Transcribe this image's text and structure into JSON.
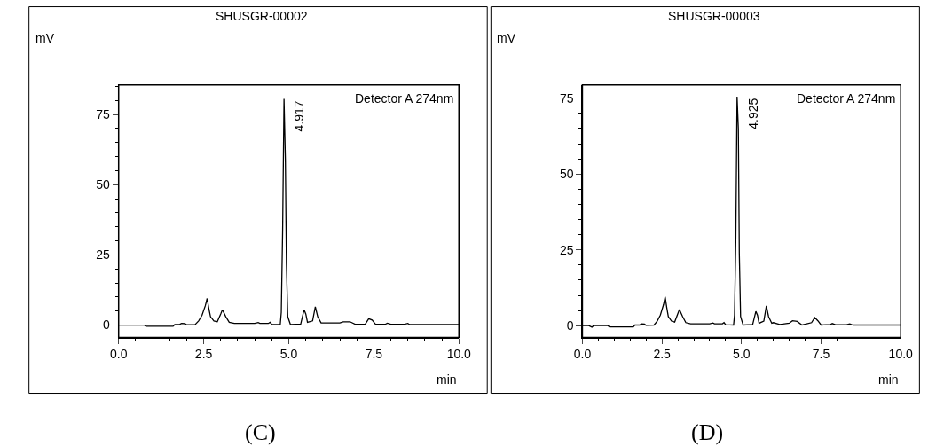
{
  "chart_data": [
    {
      "type": "line",
      "title": "SHUSGR-00002",
      "xlabel": "min",
      "ylabel": "mV",
      "x": [
        0,
        0.75,
        0.8,
        1.6,
        1.65,
        1.8,
        1.85,
        1.95,
        2.0,
        2.25,
        2.35,
        2.45,
        2.55,
        2.6,
        2.65,
        2.7,
        2.8,
        2.9,
        3.0,
        3.05,
        3.15,
        3.25,
        3.4,
        4.0,
        4.1,
        4.15,
        4.4,
        4.45,
        4.5,
        4.75,
        4.78,
        4.82,
        4.86,
        4.9,
        4.93,
        4.97,
        5.05,
        5.35,
        5.45,
        5.5,
        5.55,
        5.7,
        5.78,
        5.85,
        5.95,
        6.5,
        6.6,
        6.8,
        6.95,
        7.25,
        7.35,
        7.45,
        7.55,
        7.85,
        7.9,
        8.0,
        8.4,
        8.5,
        8.55,
        10
      ],
      "series": [
        {
          "color": "#000000",
          "values": [
            0,
            0,
            -0.4,
            -0.4,
            0.2,
            0.3,
            0.6,
            0.5,
            0.1,
            0.2,
            1.5,
            3.5,
            7,
            9.5,
            6,
            3,
            1.5,
            1.2,
            4,
            5.5,
            3,
            1,
            0.6,
            0.6,
            0.9,
            0.6,
            0.6,
            1,
            0.3,
            0.2,
            4.5,
            34,
            80.5,
            59,
            22,
            3,
            0.2,
            0.4,
            5.5,
            4,
            1,
            1.5,
            6.5,
            3,
            0.8,
            0.8,
            1.2,
            1.2,
            0.3,
            0.4,
            2.3,
            1.8,
            0.3,
            0.4,
            0.7,
            0.3,
            0.3,
            0.6,
            0.2,
            0.2
          ]
        }
      ],
      "xlim": [
        0,
        10
      ],
      "ylim": [
        -4.4,
        85.5
      ],
      "xticks": [
        {
          "value": 0,
          "label": "0.0"
        },
        {
          "value": 2.5,
          "label": "2.5"
        },
        {
          "value": 5,
          "label": "5.0"
        },
        {
          "value": 7.5,
          "label": "7.5"
        },
        {
          "value": 10,
          "label": "10.0"
        }
      ],
      "yticks": [
        0,
        25,
        50,
        75
      ],
      "annotations": [
        "Detector A 274nm",
        {
          "text": "4.917",
          "x": 4.917,
          "y": 80.5
        },
        "(C)"
      ]
    },
    {
      "type": "line",
      "title": "SHUSGR-00003",
      "xlabel": "min",
      "ylabel": "mV",
      "x": [
        0,
        0.2,
        0.3,
        0.35,
        0.8,
        0.85,
        1.6,
        1.65,
        1.8,
        1.85,
        1.95,
        2.0,
        2.25,
        2.35,
        2.45,
        2.55,
        2.6,
        2.65,
        2.7,
        2.8,
        2.9,
        3.0,
        3.05,
        3.15,
        3.25,
        3.4,
        4.0,
        4.1,
        4.15,
        4.4,
        4.45,
        4.5,
        4.75,
        4.78,
        4.82,
        4.86,
        4.9,
        4.93,
        4.97,
        5.05,
        5.35,
        5.45,
        5.5,
        5.55,
        5.7,
        5.78,
        5.85,
        5.95,
        6.0,
        6.2,
        6.5,
        6.6,
        6.75,
        6.9,
        7.2,
        7.3,
        7.4,
        7.5,
        7.8,
        7.85,
        7.95,
        8.3,
        8.4,
        8.5,
        10
      ],
      "series": [
        {
          "color": "#000000",
          "values": [
            0,
            0,
            -0.5,
            0,
            0,
            -0.4,
            -0.4,
            0.2,
            0.2,
            0.6,
            0.5,
            0.1,
            0.2,
            1.5,
            3.5,
            7,
            9.5,
            6,
            3,
            1.5,
            1.2,
            4,
            5.3,
            3,
            1,
            0.6,
            0.6,
            0.9,
            0.6,
            0.6,
            1,
            0.3,
            0.2,
            3.5,
            28,
            75.5,
            65,
            24,
            3,
            0.2,
            0.4,
            4.7,
            3.5,
            0.8,
            1.5,
            6.5,
            3,
            0.8,
            1,
            0.4,
            0.8,
            1.6,
            1.4,
            0.2,
            1,
            2.7,
            1.6,
            0.2,
            0.4,
            0.7,
            0.3,
            0.3,
            0.6,
            0.2,
            0.2
          ]
        }
      ],
      "xlim": [
        0,
        10
      ],
      "ylim": [
        -3.9,
        79.4
      ],
      "xticks": [
        {
          "value": 0,
          "label": "0.0"
        },
        {
          "value": 2.5,
          "label": "2.5"
        },
        {
          "value": 5,
          "label": "5.0"
        },
        {
          "value": 7.5,
          "label": "7.5"
        },
        {
          "value": 10,
          "label": "10.0"
        }
      ],
      "yticks": [
        0,
        25,
        50,
        75
      ],
      "annotations": [
        "Detector A 274nm",
        {
          "text": "4.925",
          "x": 4.925,
          "y": 75.5
        },
        "(D)"
      ]
    }
  ]
}
